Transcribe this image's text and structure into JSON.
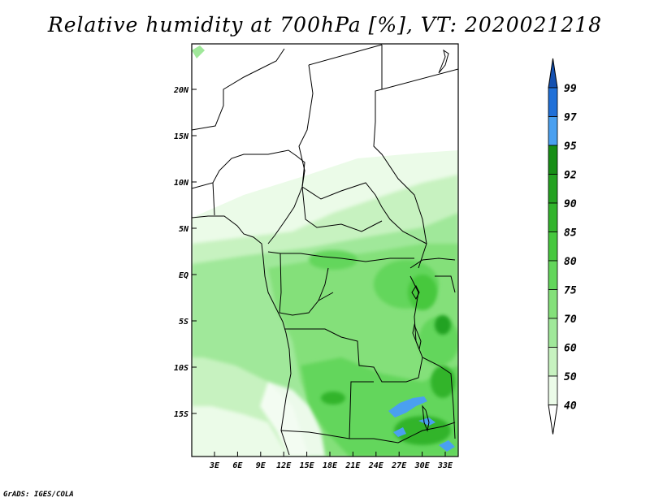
{
  "title": "Relative humidity at 700hPa [%], VT: 2020021218",
  "credit": "GrADS: IGES/COLA",
  "axes": {
    "lat_ticks": [
      "20N",
      "15N",
      "10N",
      "5N",
      "EQ",
      "5S",
      "10S",
      "15S"
    ],
    "lon_ticks": [
      "3E",
      "6E",
      "9E",
      "12E",
      "15E",
      "18E",
      "21E",
      "24E",
      "27E",
      "30E",
      "33E"
    ]
  },
  "colorbar": {
    "levels": [
      "40",
      "50",
      "60",
      "70",
      "75",
      "80",
      "85",
      "90",
      "92",
      "95",
      "97",
      "99"
    ],
    "colors": [
      "#ffffff",
      "#ebfbe8",
      "#c7f2c0",
      "#a0e89a",
      "#84e07a",
      "#63d65b",
      "#46c83e",
      "#32b42c",
      "#24a221",
      "#178e16",
      "#4aa0f0",
      "#2070d8",
      "#1450b0"
    ]
  }
}
